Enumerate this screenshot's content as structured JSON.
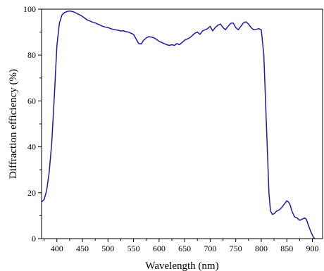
{
  "chart_data": {
    "type": "line",
    "title": "",
    "xlabel": "Wavelength (nm)",
    "ylabel": "Diffraction efficiency (%)",
    "xlim": [
      370,
      920
    ],
    "ylim": [
      0,
      100
    ],
    "x_ticks": [
      400,
      450,
      500,
      550,
      600,
      650,
      700,
      750,
      800,
      850,
      900
    ],
    "y_ticks": [
      0,
      20,
      40,
      60,
      80,
      100
    ],
    "x_tick_labels": [
      "400",
      "450",
      "500",
      "550",
      "600",
      "650",
      "700",
      "750",
      "800",
      "850",
      "900"
    ],
    "y_tick_labels": [
      "0",
      "20",
      "40",
      "60",
      "80",
      "100"
    ],
    "grid": false,
    "legend": "none",
    "series": [
      {
        "color": "#1a1aa6",
        "points": [
          [
            370,
            16
          ],
          [
            375,
            17
          ],
          [
            380,
            21
          ],
          [
            385,
            29
          ],
          [
            390,
            42
          ],
          [
            395,
            62
          ],
          [
            400,
            84
          ],
          [
            405,
            94
          ],
          [
            410,
            97.5
          ],
          [
            415,
            98.5
          ],
          [
            420,
            99
          ],
          [
            425,
            99.2
          ],
          [
            430,
            99
          ],
          [
            435,
            98.6
          ],
          [
            440,
            98
          ],
          [
            445,
            97.5
          ],
          [
            450,
            96.8
          ],
          [
            455,
            96
          ],
          [
            460,
            95.2
          ],
          [
            465,
            94.8
          ],
          [
            470,
            94.3
          ],
          [
            475,
            94
          ],
          [
            480,
            93.5
          ],
          [
            485,
            93
          ],
          [
            490,
            92.5
          ],
          [
            495,
            92.2
          ],
          [
            500,
            92
          ],
          [
            505,
            91.5
          ],
          [
            510,
            91.2
          ],
          [
            515,
            91
          ],
          [
            520,
            90.8
          ],
          [
            525,
            90.5
          ],
          [
            530,
            90.6
          ],
          [
            535,
            90.2
          ],
          [
            540,
            90
          ],
          [
            545,
            89.5
          ],
          [
            550,
            89
          ],
          [
            555,
            87
          ],
          [
            560,
            85
          ],
          [
            565,
            84.8
          ],
          [
            570,
            86.5
          ],
          [
            575,
            87.5
          ],
          [
            580,
            88
          ],
          [
            585,
            87.8
          ],
          [
            590,
            87.5
          ],
          [
            595,
            86.8
          ],
          [
            600,
            86
          ],
          [
            605,
            85.5
          ],
          [
            610,
            85
          ],
          [
            615,
            84.5
          ],
          [
            620,
            84.2
          ],
          [
            625,
            84.5
          ],
          [
            630,
            84.2
          ],
          [
            635,
            85
          ],
          [
            640,
            84.5
          ],
          [
            645,
            85.5
          ],
          [
            650,
            86.5
          ],
          [
            655,
            87
          ],
          [
            660,
            87.5
          ],
          [
            665,
            88.5
          ],
          [
            670,
            89.5
          ],
          [
            675,
            90
          ],
          [
            680,
            89
          ],
          [
            685,
            90.5
          ],
          [
            690,
            91
          ],
          [
            695,
            91.5
          ],
          [
            700,
            92.5
          ],
          [
            705,
            90.5
          ],
          [
            710,
            92
          ],
          [
            715,
            93
          ],
          [
            720,
            93.5
          ],
          [
            725,
            92
          ],
          [
            730,
            91
          ],
          [
            735,
            92.5
          ],
          [
            740,
            93.8
          ],
          [
            745,
            94
          ],
          [
            750,
            92
          ],
          [
            755,
            91
          ],
          [
            760,
            92.5
          ],
          [
            765,
            94
          ],
          [
            770,
            94.5
          ],
          [
            775,
            93.5
          ],
          [
            780,
            92
          ],
          [
            785,
            91
          ],
          [
            790,
            91.2
          ],
          [
            795,
            91.5
          ],
          [
            800,
            91
          ],
          [
            805,
            80
          ],
          [
            810,
            50
          ],
          [
            815,
            20
          ],
          [
            818,
            12
          ],
          [
            822,
            10.5
          ],
          [
            826,
            11
          ],
          [
            830,
            12
          ],
          [
            835,
            12.5
          ],
          [
            840,
            13.5
          ],
          [
            845,
            15
          ],
          [
            850,
            16.5
          ],
          [
            853,
            16
          ],
          [
            856,
            15
          ],
          [
            860,
            12
          ],
          [
            865,
            9.5
          ],
          [
            870,
            9
          ],
          [
            875,
            8
          ],
          [
            880,
            8.5
          ],
          [
            885,
            9
          ],
          [
            888,
            8.5
          ],
          [
            892,
            6
          ],
          [
            897,
            3
          ],
          [
            900,
            1.5
          ],
          [
            903,
            0.3
          ],
          [
            905,
            0
          ]
        ]
      }
    ]
  }
}
